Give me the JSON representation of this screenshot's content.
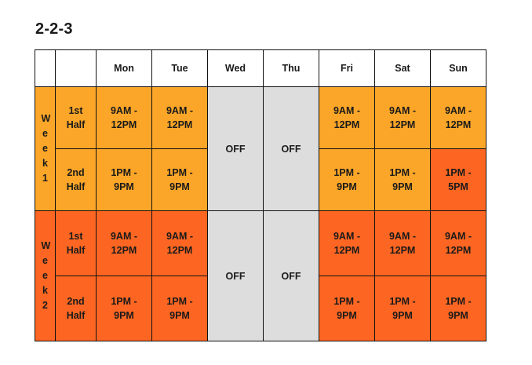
{
  "title": "2-2-3",
  "header": {
    "blank1": "",
    "blank2": "",
    "days": [
      "Mon",
      "Tue",
      "Wed",
      "Thu",
      "Fri",
      "Sat",
      "Sun"
    ]
  },
  "weeks": [
    {
      "label": "Week1",
      "halves": [
        {
          "label": "1st\nHalf",
          "mon": "9AM -\n12PM",
          "tue": "9AM -\n12PM",
          "fri": "9AM -\n12PM",
          "sat": "9AM -\n12PM",
          "sun": "9AM -\n12PM"
        },
        {
          "label": "2nd\nHalf",
          "mon": "1PM -\n9PM",
          "tue": "1PM -\n9PM",
          "fri": "1PM -\n9PM",
          "sat": "1PM -\n9PM",
          "sun": "1PM -\n5PM"
        }
      ],
      "wed": "OFF",
      "thu": "OFF"
    },
    {
      "label": "Week2",
      "halves": [
        {
          "label": "1st\nHalf",
          "mon": "9AM -\n12PM",
          "tue": "9AM -\n12PM",
          "fri": "9AM -\n12PM",
          "sat": "9AM -\n12PM",
          "sun": "9AM -\n12PM"
        },
        {
          "label": "2nd\nHalf",
          "mon": "1PM -\n9PM",
          "tue": "1PM -\n9PM",
          "fri": "1PM -\n9PM",
          "sat": "1PM -\n9PM",
          "sun": "1PM -\n9PM"
        }
      ],
      "wed": "OFF",
      "thu": "OFF"
    }
  ],
  "colors": {
    "light_orange": "#fba628",
    "dark_orange": "#fd6622",
    "off_gray": "#dddddd"
  }
}
